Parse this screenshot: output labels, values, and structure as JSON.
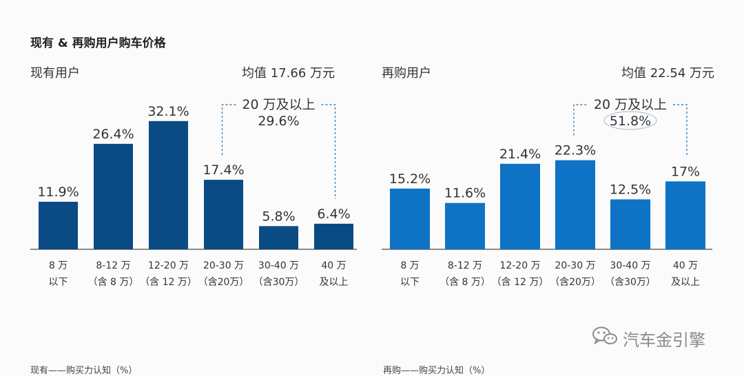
{
  "header": {
    "title": "现有 & 再购用户购车价格"
  },
  "watermark": {
    "text": "汽车金引擎",
    "icon": "wechat-icon"
  },
  "colors": {
    "left_bar": "#0b4b84",
    "right_bar": "#0e73c4",
    "label": "#333333",
    "bracket": "#3d7fb8"
  },
  "chart_data": [
    {
      "type": "bar",
      "subtitle": "现有用户",
      "mean_label": "均值 17.66 万元",
      "categories": [
        [
          "8 万",
          "以下"
        ],
        [
          "8-12 万",
          "（含 8 万）"
        ],
        [
          "12-20 万",
          "（含 12 万）"
        ],
        [
          "20-30 万",
          "（含20万）"
        ],
        [
          "30-40 万",
          "（含30万）"
        ],
        [
          "40 万",
          "及以上"
        ]
      ],
      "values": [
        11.9,
        26.4,
        32.1,
        17.4,
        5.8,
        6.4
      ],
      "value_labels": [
        "11.9%",
        "26.4%",
        "32.1%",
        "17.4%",
        "5.8%",
        "6.4%"
      ],
      "bracket": {
        "label": "20 万及以上",
        "value": "29.6%",
        "from_index": 3,
        "to_index": 5,
        "circled": false
      },
      "ylim": [
        0,
        40
      ]
    },
    {
      "type": "bar",
      "subtitle": "再购用户",
      "mean_label": "均值 22.54 万元",
      "categories": [
        [
          "8 万",
          "以下"
        ],
        [
          "8-12 万",
          "（含 8 万）"
        ],
        [
          "12-20 万",
          "（含 12 万）"
        ],
        [
          "20-30 万",
          "（含20万）"
        ],
        [
          "30-40 万",
          "（含30万）"
        ],
        [
          "40 万",
          "及以上"
        ]
      ],
      "values": [
        15.2,
        11.6,
        21.4,
        22.3,
        12.5,
        17
      ],
      "value_labels": [
        "15.2%",
        "11.6%",
        "21.4%",
        "22.3%",
        "12.5%",
        "17%"
      ],
      "bracket": {
        "label": "20 万及以上",
        "value": "51.8%",
        "from_index": 3,
        "to_index": 5,
        "circled": true
      },
      "ylim": [
        0,
        40
      ]
    }
  ],
  "footer": {
    "left": "现有——购买力认知（%）",
    "right": "再购——购买力认知（%）"
  }
}
